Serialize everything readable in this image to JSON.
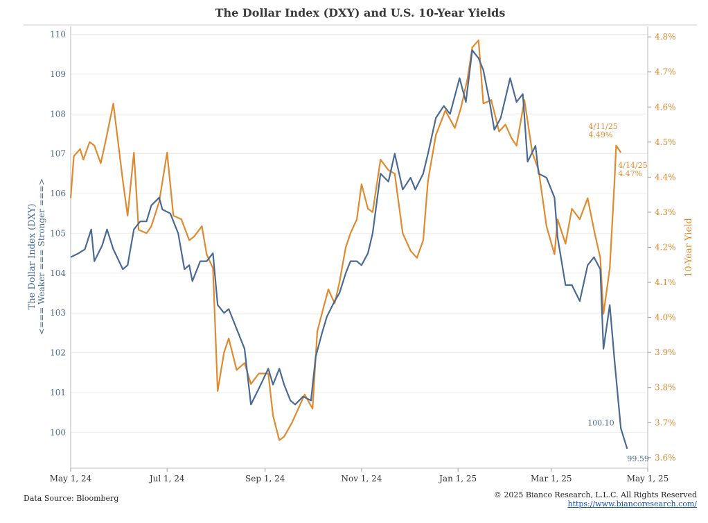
{
  "chart_data": {
    "type": "line",
    "title": "The Dollar Index (DXY)  and U.S. 10-Year Yields",
    "x_tick_labels": [
      "May 1, 24",
      "Jul 1, 24",
      "Sep 1, 24",
      "Nov 1, 24",
      "Jan 1, 25",
      "Mar 1, 25",
      "May 1, 25"
    ],
    "x_tick_dates": [
      "2024-05-01",
      "2024-07-01",
      "2024-09-01",
      "2024-11-01",
      "2025-01-01",
      "2025-03-01",
      "2025-05-01"
    ],
    "xlim": [
      "2024-05-01",
      "2025-05-01"
    ],
    "y_left": {
      "label": "The Dollar Index (DXY)",
      "label2": "<=== Weaker === Stronger ===>",
      "ylim": [
        99.1,
        110.2
      ],
      "ticks": [
        "100",
        "101",
        "102",
        "103",
        "104",
        "105",
        "106",
        "107",
        "108",
        "109",
        "110"
      ],
      "tick_values": [
        100,
        101,
        102,
        103,
        104,
        105,
        106,
        107,
        108,
        109,
        110
      ]
    },
    "y_right": {
      "label": "10-Year Yield",
      "ylim": [
        3.57,
        4.83
      ],
      "ticks": [
        "3.6%",
        "3.7%",
        "3.8%",
        "3.9%",
        "4.0%",
        "4.1%",
        "4.2%",
        "4.3%",
        "4.4%",
        "4.5%",
        "4.6%",
        "4.7%",
        "4.8%"
      ],
      "tick_values": [
        3.6,
        3.7,
        3.8,
        3.9,
        4.0,
        4.1,
        4.2,
        4.3,
        4.4,
        4.5,
        4.6,
        4.7,
        4.8
      ]
    },
    "grid": true,
    "series": [
      {
        "axis": "left",
        "color": "#4a6a93",
        "points": [
          [
            "2024-05-01",
            104.4
          ],
          [
            "2024-05-06",
            104.5
          ],
          [
            "2024-05-10",
            104.6
          ],
          [
            "2024-05-14",
            105.1
          ],
          [
            "2024-05-16",
            104.3
          ],
          [
            "2024-05-21",
            104.7
          ],
          [
            "2024-05-24",
            105.1
          ],
          [
            "2024-05-28",
            104.6
          ],
          [
            "2024-06-03",
            104.1
          ],
          [
            "2024-06-06",
            104.2
          ],
          [
            "2024-06-10",
            105.1
          ],
          [
            "2024-06-14",
            105.3
          ],
          [
            "2024-06-18",
            105.3
          ],
          [
            "2024-06-21",
            105.7
          ],
          [
            "2024-06-26",
            105.9
          ],
          [
            "2024-06-28",
            105.6
          ],
          [
            "2024-07-03",
            105.5
          ],
          [
            "2024-07-08",
            105.0
          ],
          [
            "2024-07-12",
            104.1
          ],
          [
            "2024-07-15",
            104.2
          ],
          [
            "2024-07-17",
            103.8
          ],
          [
            "2024-07-22",
            104.3
          ],
          [
            "2024-07-26",
            104.3
          ],
          [
            "2024-07-30",
            104.5
          ],
          [
            "2024-08-02",
            103.2
          ],
          [
            "2024-08-06",
            103.0
          ],
          [
            "2024-08-09",
            103.1
          ],
          [
            "2024-08-14",
            102.6
          ],
          [
            "2024-08-19",
            102.1
          ],
          [
            "2024-08-23",
            100.7
          ],
          [
            "2024-08-28",
            101.1
          ],
          [
            "2024-09-03",
            101.6
          ],
          [
            "2024-09-06",
            101.2
          ],
          [
            "2024-09-10",
            101.6
          ],
          [
            "2024-09-13",
            101.2
          ],
          [
            "2024-09-17",
            100.8
          ],
          [
            "2024-09-20",
            100.7
          ],
          [
            "2024-09-25",
            100.9
          ],
          [
            "2024-09-30",
            100.8
          ],
          [
            "2024-10-03",
            101.9
          ],
          [
            "2024-10-07",
            102.5
          ],
          [
            "2024-10-10",
            102.9
          ],
          [
            "2024-10-15",
            103.3
          ],
          [
            "2024-10-18",
            103.5
          ],
          [
            "2024-10-22",
            104.0
          ],
          [
            "2024-10-25",
            104.3
          ],
          [
            "2024-10-29",
            104.3
          ],
          [
            "2024-11-01",
            104.2
          ],
          [
            "2024-11-05",
            104.5
          ],
          [
            "2024-11-08",
            105.0
          ],
          [
            "2024-11-13",
            106.5
          ],
          [
            "2024-11-18",
            106.3
          ],
          [
            "2024-11-22",
            107.0
          ],
          [
            "2024-11-27",
            106.1
          ],
          [
            "2024-12-02",
            106.4
          ],
          [
            "2024-12-05",
            106.1
          ],
          [
            "2024-12-10",
            106.5
          ],
          [
            "2024-12-13",
            107.0
          ],
          [
            "2024-12-18",
            107.9
          ],
          [
            "2024-12-23",
            108.2
          ],
          [
            "2024-12-27",
            108.0
          ],
          [
            "2025-01-02",
            108.9
          ],
          [
            "2025-01-06",
            108.3
          ],
          [
            "2025-01-10",
            109.6
          ],
          [
            "2025-01-14",
            109.4
          ],
          [
            "2025-01-17",
            109.1
          ],
          [
            "2025-01-21",
            108.3
          ],
          [
            "2025-01-24",
            107.6
          ],
          [
            "2025-01-28",
            107.9
          ],
          [
            "2025-02-03",
            108.9
          ],
          [
            "2025-02-07",
            108.3
          ],
          [
            "2025-02-11",
            108.5
          ],
          [
            "2025-02-14",
            106.8
          ],
          [
            "2025-02-19",
            107.2
          ],
          [
            "2025-02-21",
            106.5
          ],
          [
            "2025-02-26",
            106.4
          ],
          [
            "2025-03-03",
            105.9
          ],
          [
            "2025-03-05",
            104.9
          ],
          [
            "2025-03-10",
            103.7
          ],
          [
            "2025-03-14",
            103.7
          ],
          [
            "2025-03-19",
            103.3
          ],
          [
            "2025-03-24",
            104.2
          ],
          [
            "2025-03-28",
            104.4
          ],
          [
            "2025-04-01",
            104.1
          ],
          [
            "2025-04-03",
            102.1
          ],
          [
            "2025-04-07",
            103.2
          ],
          [
            "2025-04-10",
            101.8
          ],
          [
            "2025-04-14",
            100.1
          ],
          [
            "2025-04-18",
            99.59
          ]
        ]
      },
      {
        "axis": "right",
        "color": "#e08a2f",
        "points": [
          [
            "2024-05-01",
            4.34
          ],
          [
            "2024-05-03",
            4.46
          ],
          [
            "2024-05-07",
            4.48
          ],
          [
            "2024-05-09",
            4.45
          ],
          [
            "2024-05-13",
            4.5
          ],
          [
            "2024-05-16",
            4.49
          ],
          [
            "2024-05-20",
            4.44
          ],
          [
            "2024-05-23",
            4.5
          ],
          [
            "2024-05-28",
            4.61
          ],
          [
            "2024-06-03",
            4.39
          ],
          [
            "2024-06-06",
            4.29
          ],
          [
            "2024-06-10",
            4.47
          ],
          [
            "2024-06-13",
            4.25
          ],
          [
            "2024-06-18",
            4.24
          ],
          [
            "2024-06-21",
            4.26
          ],
          [
            "2024-06-26",
            4.33
          ],
          [
            "2024-07-01",
            4.47
          ],
          [
            "2024-07-05",
            4.29
          ],
          [
            "2024-07-10",
            4.28
          ],
          [
            "2024-07-15",
            4.22
          ],
          [
            "2024-07-18",
            4.23
          ],
          [
            "2024-07-23",
            4.26
          ],
          [
            "2024-07-26",
            4.18
          ],
          [
            "2024-07-30",
            4.14
          ],
          [
            "2024-08-02",
            3.79
          ],
          [
            "2024-08-06",
            3.9
          ],
          [
            "2024-08-09",
            3.94
          ],
          [
            "2024-08-14",
            3.85
          ],
          [
            "2024-08-19",
            3.87
          ],
          [
            "2024-08-23",
            3.81
          ],
          [
            "2024-08-28",
            3.84
          ],
          [
            "2024-09-03",
            3.84
          ],
          [
            "2024-09-06",
            3.72
          ],
          [
            "2024-09-10",
            3.65
          ],
          [
            "2024-09-13",
            3.66
          ],
          [
            "2024-09-18",
            3.7
          ],
          [
            "2024-09-23",
            3.75
          ],
          [
            "2024-09-26",
            3.78
          ],
          [
            "2024-10-01",
            3.74
          ],
          [
            "2024-10-04",
            3.96
          ],
          [
            "2024-10-08",
            4.03
          ],
          [
            "2024-10-11",
            4.08
          ],
          [
            "2024-10-15",
            4.04
          ],
          [
            "2024-10-18",
            4.1
          ],
          [
            "2024-10-22",
            4.2
          ],
          [
            "2024-10-25",
            4.24
          ],
          [
            "2024-10-29",
            4.28
          ],
          [
            "2024-11-01",
            4.38
          ],
          [
            "2024-11-05",
            4.31
          ],
          [
            "2024-11-08",
            4.3
          ],
          [
            "2024-11-13",
            4.45
          ],
          [
            "2024-11-18",
            4.42
          ],
          [
            "2024-11-22",
            4.41
          ],
          [
            "2024-11-27",
            4.24
          ],
          [
            "2024-12-02",
            4.19
          ],
          [
            "2024-12-06",
            4.17
          ],
          [
            "2024-12-10",
            4.22
          ],
          [
            "2024-12-13",
            4.39
          ],
          [
            "2024-12-18",
            4.52
          ],
          [
            "2024-12-24",
            4.59
          ],
          [
            "2024-12-30",
            4.54
          ],
          [
            "2025-01-03",
            4.6
          ],
          [
            "2025-01-07",
            4.68
          ],
          [
            "2025-01-10",
            4.77
          ],
          [
            "2025-01-14",
            4.79
          ],
          [
            "2025-01-17",
            4.61
          ],
          [
            "2025-01-22",
            4.62
          ],
          [
            "2025-01-27",
            4.53
          ],
          [
            "2025-01-31",
            4.55
          ],
          [
            "2025-02-04",
            4.51
          ],
          [
            "2025-02-07",
            4.49
          ],
          [
            "2025-02-12",
            4.62
          ],
          [
            "2025-02-17",
            4.47
          ],
          [
            "2025-02-21",
            4.42
          ],
          [
            "2025-02-26",
            4.26
          ],
          [
            "2025-03-03",
            4.18
          ],
          [
            "2025-03-05",
            4.28
          ],
          [
            "2025-03-10",
            4.21
          ],
          [
            "2025-03-14",
            4.31
          ],
          [
            "2025-03-19",
            4.28
          ],
          [
            "2025-03-24",
            4.34
          ],
          [
            "2025-03-28",
            4.25
          ],
          [
            "2025-04-01",
            4.17
          ],
          [
            "2025-04-03",
            4.01
          ],
          [
            "2025-04-07",
            4.14
          ],
          [
            "2025-04-10",
            4.39
          ],
          [
            "2025-04-11",
            4.49
          ],
          [
            "2025-04-14",
            4.47
          ]
        ]
      }
    ],
    "annotations": [
      {
        "series": "right",
        "date": "2025-04-11",
        "value": 4.49,
        "lines": [
          "4/11/25",
          "4.49%"
        ]
      },
      {
        "series": "right",
        "date": "2025-04-14",
        "value": 4.47,
        "lines": [
          "4/14/25",
          "4.47%"
        ]
      },
      {
        "series": "left",
        "date": "2025-04-14",
        "value": 100.1,
        "lines": [
          "100.10"
        ]
      },
      {
        "series": "left",
        "date": "2025-04-18",
        "value": 99.59,
        "lines": [
          "99.59"
        ]
      }
    ]
  },
  "footer": {
    "source": "Data Source: Bloomberg",
    "copyright": "© 2025 Bianco Research, L.L.C. All Rights Reserved",
    "url": "https://www.biancoresearch.com/"
  }
}
